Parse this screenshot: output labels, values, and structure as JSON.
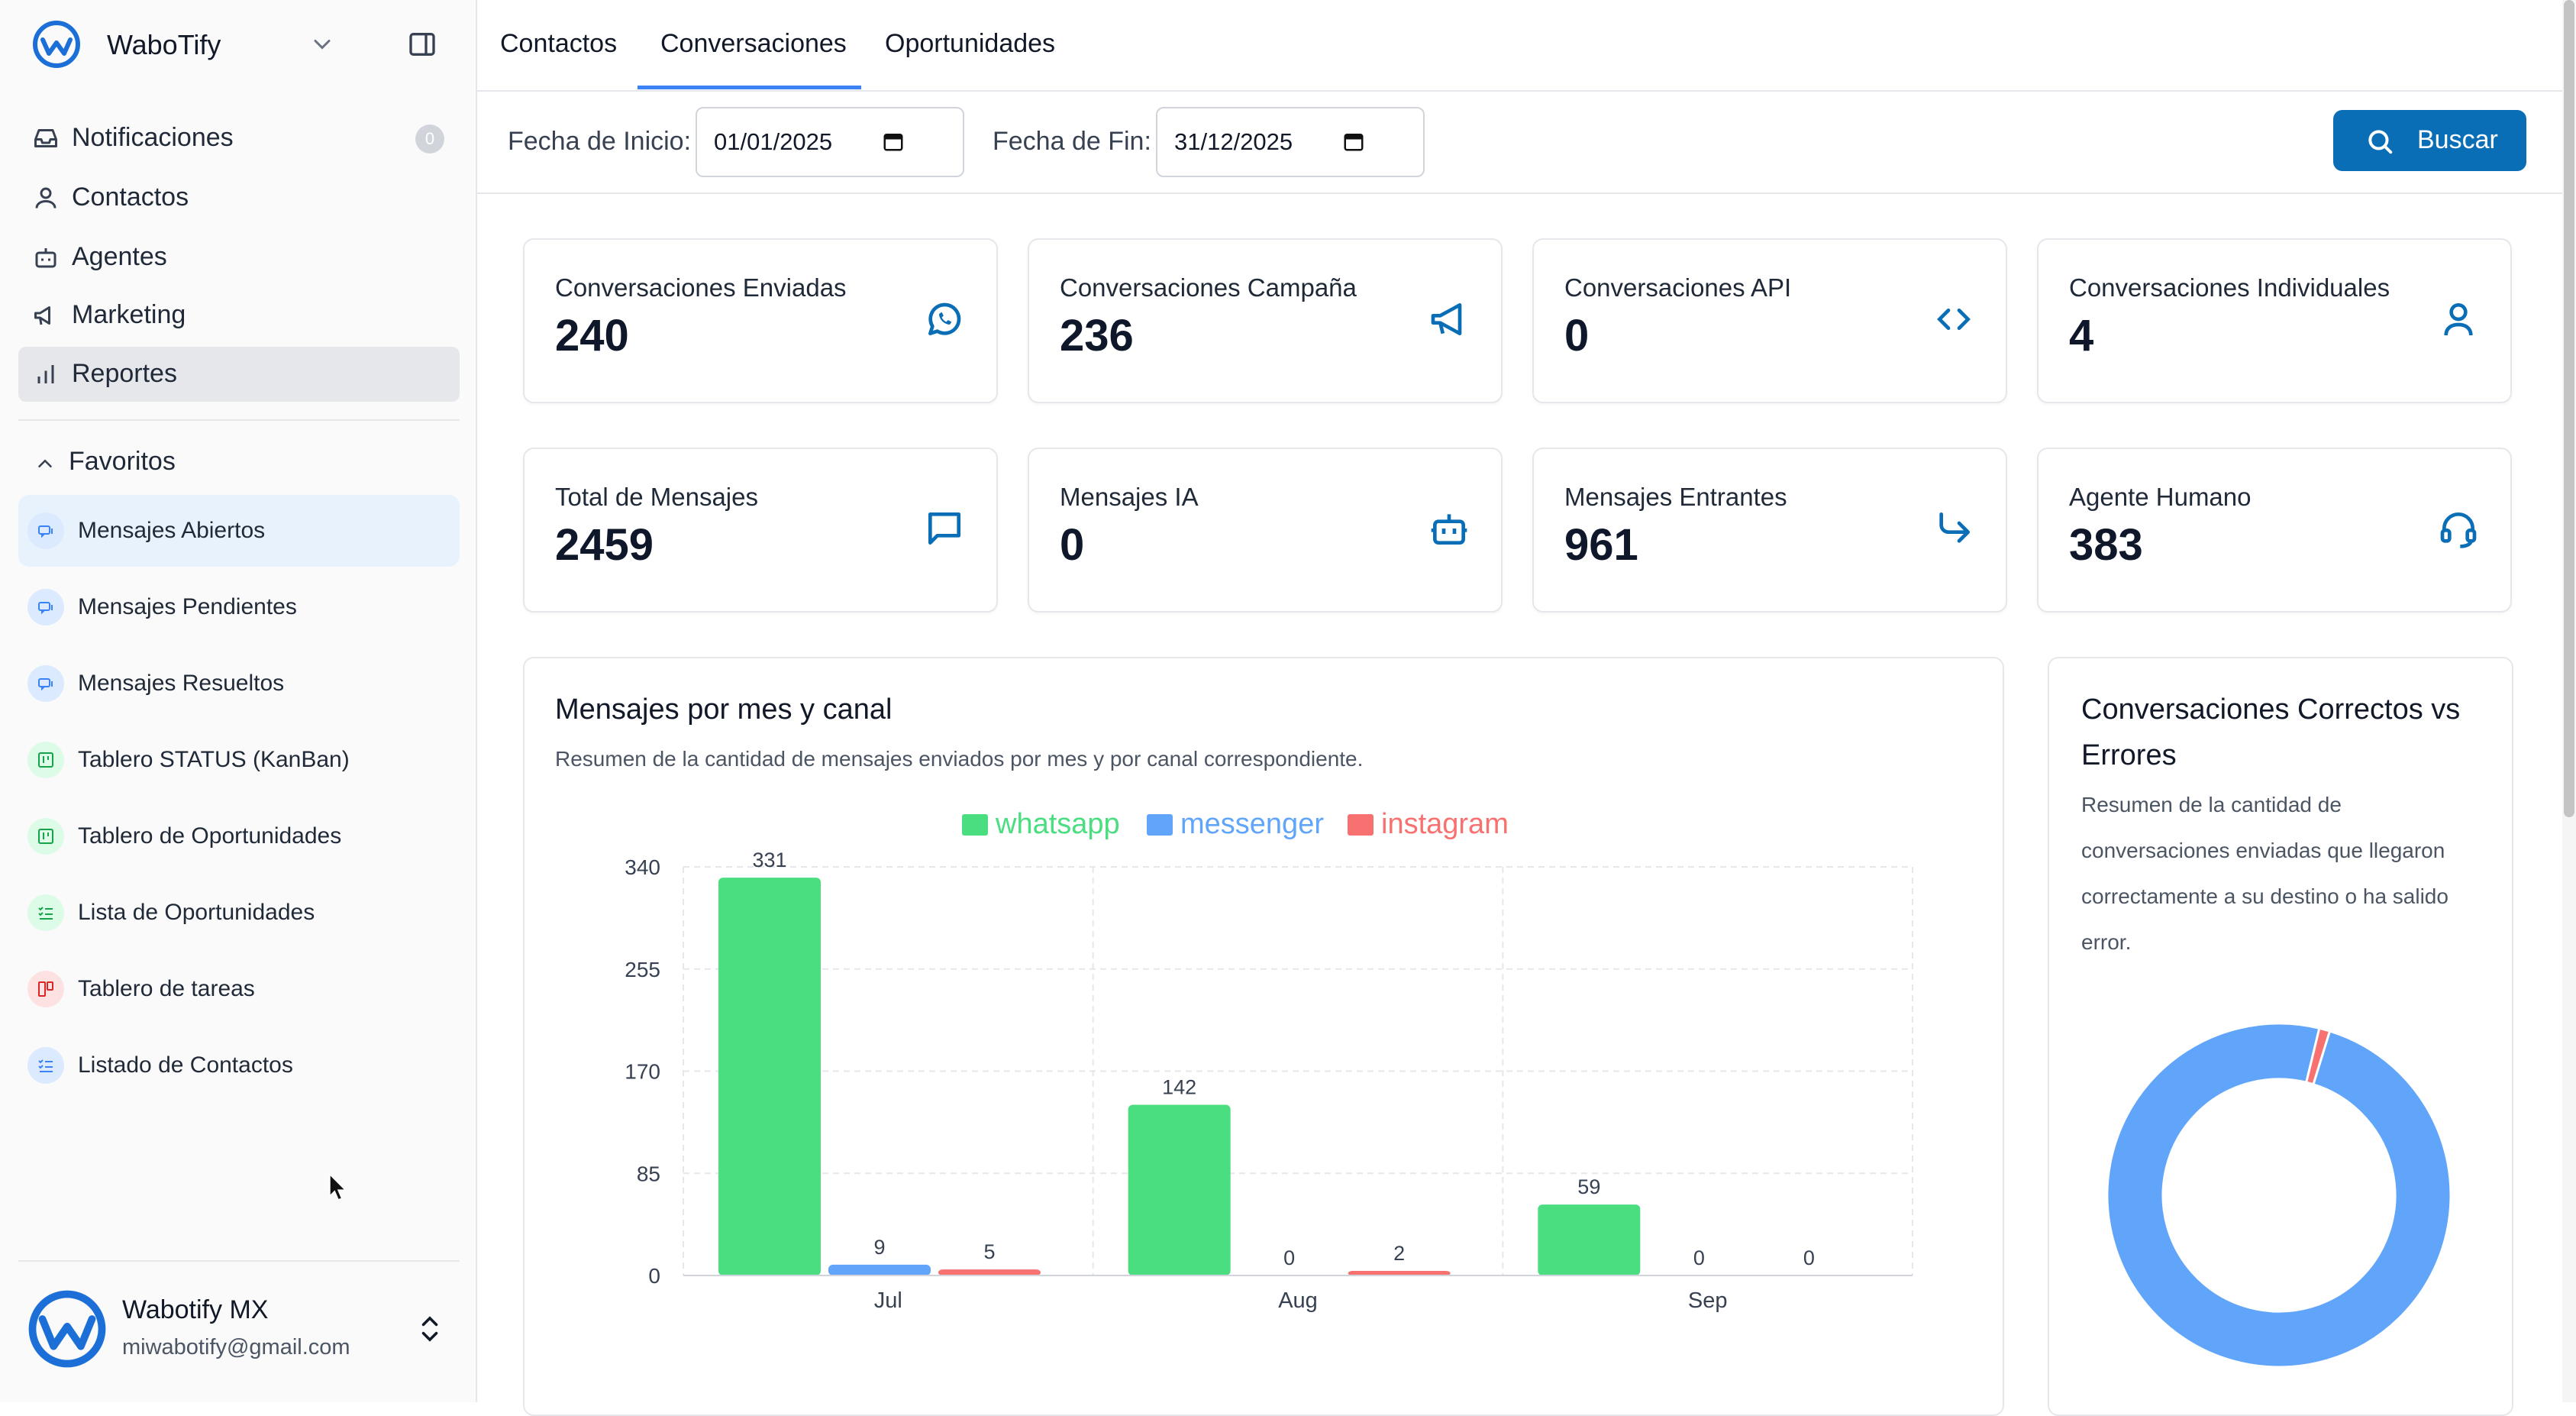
{
  "sidebar": {
    "brand": "WaboTify",
    "nav": [
      {
        "label": "Notificaciones",
        "badge": "0"
      },
      {
        "label": "Contactos"
      },
      {
        "label": "Agentes"
      },
      {
        "label": "Marketing"
      },
      {
        "label": "Reportes"
      }
    ],
    "favorites_title": "Favoritos",
    "favorites": [
      {
        "label": "Mensajes Abiertos"
      },
      {
        "label": "Mensajes Pendientes"
      },
      {
        "label": "Mensajes Resueltos"
      },
      {
        "label": "Tablero STATUS (KanBan)"
      },
      {
        "label": "Tablero de Oportunidades"
      },
      {
        "label": "Lista de Oportunidades"
      },
      {
        "label": "Tablero de tareas"
      },
      {
        "label": "Listado de Contactos"
      }
    ],
    "user": {
      "name": "Wabotify MX",
      "email": "miwabotify@gmail.com"
    }
  },
  "tabs": [
    {
      "label": "Contactos"
    },
    {
      "label": "Conversaciones"
    },
    {
      "label": "Oportunidades"
    }
  ],
  "filters": {
    "start_label": "Fecha de Inicio:",
    "start_value": "01/01/2025",
    "end_label": "Fecha de Fin:",
    "end_value": "31/12/2025",
    "search_label": "Buscar"
  },
  "stats": [
    {
      "title": "Conversaciones Enviadas",
      "value": "240",
      "icon": "whatsapp-icon"
    },
    {
      "title": "Conversaciones Campaña",
      "value": "236",
      "icon": "megaphone-icon"
    },
    {
      "title": "Conversaciones API",
      "value": "0",
      "icon": "code-icon"
    },
    {
      "title": "Conversaciones Individuales",
      "value": "4",
      "icon": "user-icon"
    },
    {
      "title": "Total de Mensajes",
      "value": "2459",
      "icon": "message-square-icon"
    },
    {
      "title": "Mensajes IA",
      "value": "0",
      "icon": "bot-icon"
    },
    {
      "title": "Mensajes Entrantes",
      "value": "961",
      "icon": "arrow-incoming-icon"
    },
    {
      "title": "Agente Humano",
      "value": "383",
      "icon": "headset-icon"
    }
  ],
  "bar_panel": {
    "title": "Mensajes por mes y canal",
    "description": "Resumen de la cantidad de mensajes enviados por mes y por canal correspondiente."
  },
  "donut_panel": {
    "title_line1": "Conversaciones Correctos vs",
    "title_line2": "Errores",
    "description": [
      "Resumen de la cantidad de",
      "conversaciones enviadas que llegaron",
      "correctamente a su destino o ha salido",
      "error."
    ]
  },
  "colors": {
    "whatsapp": "#4ade80",
    "messenger": "#60a5fa",
    "instagram": "#f87171",
    "accent": "#0a6eb6"
  },
  "chart_data": [
    {
      "type": "bar",
      "categories": [
        "Jul",
        "Aug",
        "Sep"
      ],
      "series": [
        {
          "name": "whatsapp",
          "values": [
            331,
            142,
            59
          ]
        },
        {
          "name": "messenger",
          "values": [
            9,
            0,
            0
          ]
        },
        {
          "name": "instagram",
          "values": [
            5,
            2,
            0
          ]
        }
      ],
      "ylim": [
        0,
        340
      ],
      "yticks": [
        0,
        85,
        170,
        255,
        340
      ],
      "legend": "top",
      "grid": true
    },
    {
      "type": "pie",
      "donut": true,
      "values": [
        99,
        1
      ],
      "colors": [
        "#60a5fa",
        "#f87171"
      ]
    }
  ]
}
